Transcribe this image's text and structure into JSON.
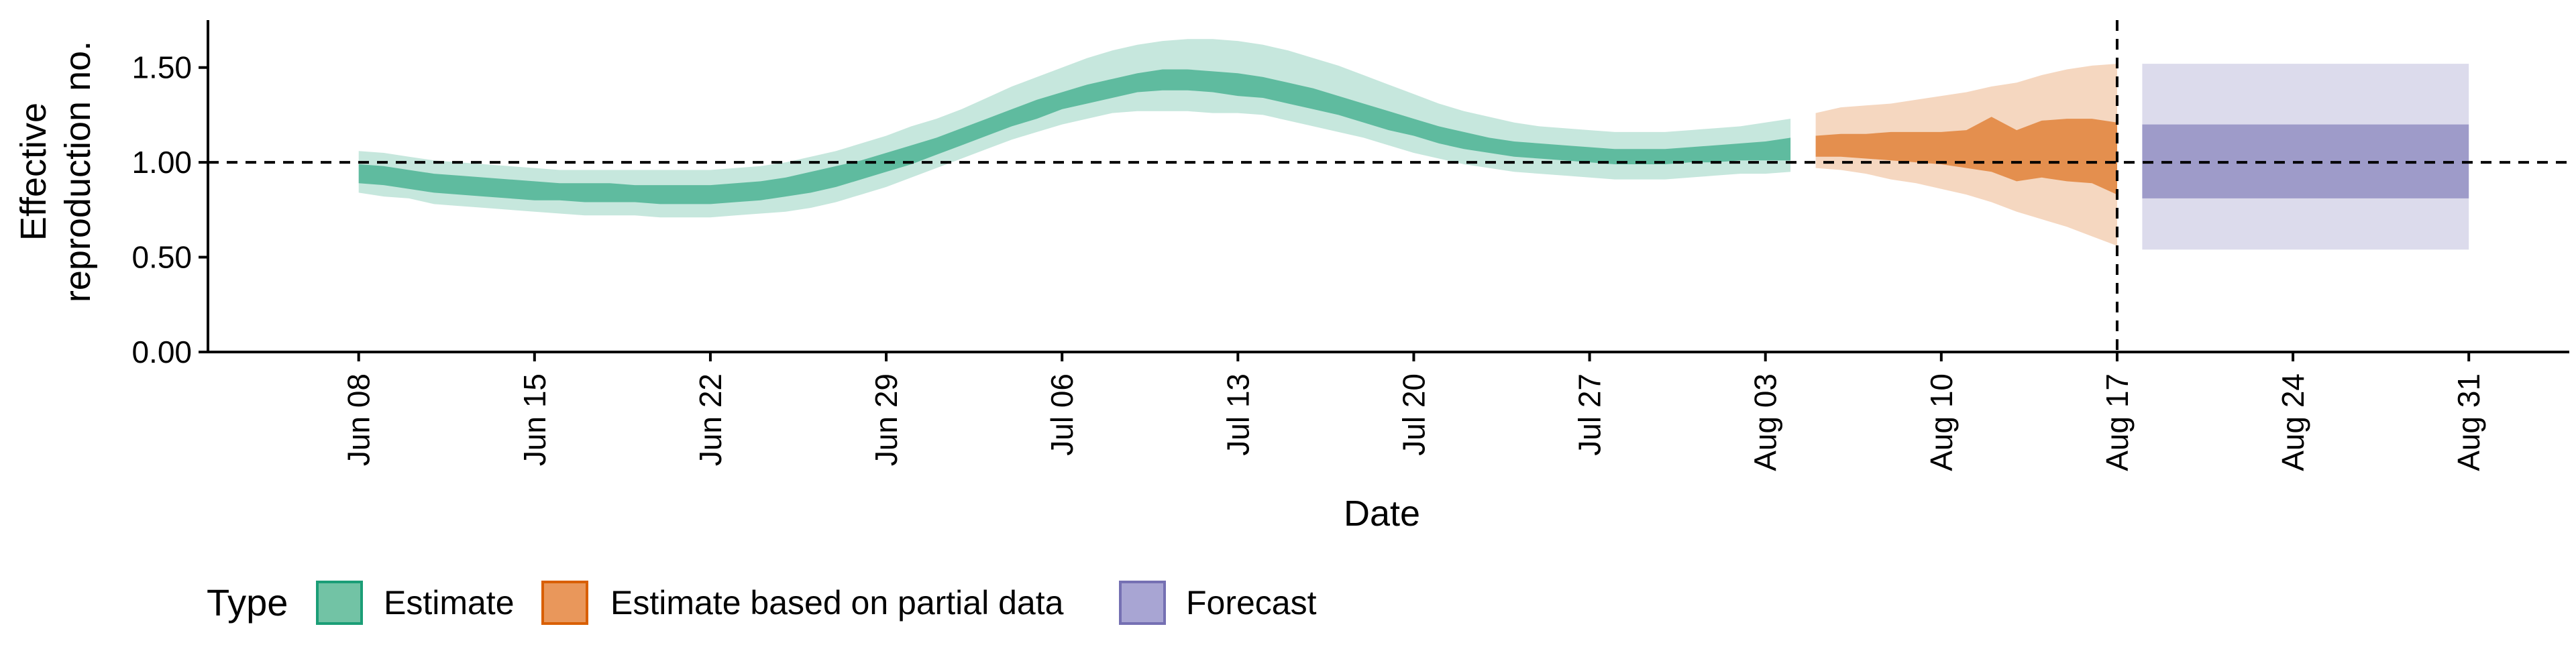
{
  "chart_data": {
    "type": "area",
    "xlabel": "Date",
    "ylabel": [
      "Effective",
      "reproduction no."
    ],
    "ylim": [
      0,
      1.75
    ],
    "yticks": [
      0,
      0.5,
      1.0,
      1.5
    ],
    "ytick_labels": [
      "0.00",
      "0.50",
      "1.00",
      "1.50"
    ],
    "xlim": [
      "2020-06-02",
      "2020-09-04"
    ],
    "xticks": [
      "2020-06-08",
      "2020-06-15",
      "2020-06-22",
      "2020-06-29",
      "2020-07-06",
      "2020-07-13",
      "2020-07-20",
      "2020-07-27",
      "2020-08-03",
      "2020-08-10",
      "2020-08-17",
      "2020-08-24",
      "2020-08-31"
    ],
    "xtick_labels": [
      "Jun 08",
      "Jun 15",
      "Jun 22",
      "Jun 29",
      "Jul 06",
      "Jul 13",
      "Jul 20",
      "Jul 27",
      "Aug 03",
      "Aug 10",
      "Aug 17",
      "Aug 24",
      "Aug 31"
    ],
    "reference_line_y": 1.0,
    "reference_line_x": "2020-08-17",
    "grid": false,
    "legend": {
      "title": "Type",
      "position": "bottom-left",
      "entries": [
        {
          "label": "Estimate",
          "fill": "#72C3A5",
          "stroke": "#1B9E77"
        },
        {
          "label": "Estimate based on partial data",
          "fill": "#E9975B",
          "stroke": "#D95F02"
        },
        {
          "label": "Forecast",
          "fill": "#A8A5D3",
          "stroke": "#7570B3"
        }
      ]
    },
    "series": [
      {
        "name": "Estimate",
        "color": "#1B9E77",
        "inner_opacity": 0.6,
        "outer_opacity": 0.25,
        "dates": [
          "2020-06-08",
          "2020-06-09",
          "2020-06-10",
          "2020-06-11",
          "2020-06-12",
          "2020-06-13",
          "2020-06-14",
          "2020-06-15",
          "2020-06-16",
          "2020-06-17",
          "2020-06-18",
          "2020-06-19",
          "2020-06-20",
          "2020-06-21",
          "2020-06-22",
          "2020-06-23",
          "2020-06-24",
          "2020-06-25",
          "2020-06-26",
          "2020-06-27",
          "2020-06-28",
          "2020-06-29",
          "2020-06-30",
          "2020-07-01",
          "2020-07-02",
          "2020-07-03",
          "2020-07-04",
          "2020-07-05",
          "2020-07-06",
          "2020-07-07",
          "2020-07-08",
          "2020-07-09",
          "2020-07-10",
          "2020-07-11",
          "2020-07-12",
          "2020-07-13",
          "2020-07-14",
          "2020-07-15",
          "2020-07-16",
          "2020-07-17",
          "2020-07-18",
          "2020-07-19",
          "2020-07-20",
          "2020-07-21",
          "2020-07-22",
          "2020-07-23",
          "2020-07-24",
          "2020-07-25",
          "2020-07-26",
          "2020-07-27",
          "2020-07-28",
          "2020-07-29",
          "2020-07-30",
          "2020-07-31",
          "2020-08-01",
          "2020-08-02",
          "2020-08-03",
          "2020-08-04"
        ],
        "lower90": [
          0.84,
          0.82,
          0.81,
          0.78,
          0.77,
          0.76,
          0.75,
          0.74,
          0.73,
          0.72,
          0.72,
          0.72,
          0.71,
          0.71,
          0.71,
          0.72,
          0.73,
          0.74,
          0.76,
          0.79,
          0.83,
          0.87,
          0.92,
          0.97,
          1.02,
          1.07,
          1.12,
          1.16,
          1.2,
          1.23,
          1.26,
          1.27,
          1.27,
          1.27,
          1.26,
          1.26,
          1.25,
          1.22,
          1.19,
          1.16,
          1.13,
          1.09,
          1.05,
          1.02,
          0.99,
          0.97,
          0.95,
          0.94,
          0.93,
          0.92,
          0.91,
          0.91,
          0.91,
          0.92,
          0.93,
          0.94,
          0.94,
          0.95
        ],
        "lower50": [
          0.89,
          0.88,
          0.86,
          0.84,
          0.83,
          0.82,
          0.81,
          0.8,
          0.8,
          0.79,
          0.79,
          0.79,
          0.78,
          0.78,
          0.78,
          0.79,
          0.8,
          0.82,
          0.84,
          0.87,
          0.91,
          0.95,
          0.99,
          1.04,
          1.09,
          1.14,
          1.19,
          1.23,
          1.28,
          1.31,
          1.34,
          1.37,
          1.38,
          1.38,
          1.37,
          1.35,
          1.34,
          1.31,
          1.28,
          1.25,
          1.21,
          1.17,
          1.14,
          1.1,
          1.07,
          1.05,
          1.03,
          1.02,
          1.01,
          1.0,
          0.99,
          0.99,
          0.99,
          1.0,
          1.0,
          1.01,
          1.01,
          1.01
        ],
        "upper50": [
          0.99,
          0.98,
          0.96,
          0.94,
          0.93,
          0.92,
          0.91,
          0.9,
          0.89,
          0.89,
          0.89,
          0.88,
          0.88,
          0.88,
          0.88,
          0.89,
          0.9,
          0.92,
          0.95,
          0.98,
          1.01,
          1.05,
          1.09,
          1.13,
          1.18,
          1.23,
          1.28,
          1.33,
          1.37,
          1.41,
          1.44,
          1.47,
          1.49,
          1.49,
          1.48,
          1.47,
          1.45,
          1.42,
          1.39,
          1.35,
          1.31,
          1.27,
          1.23,
          1.19,
          1.16,
          1.13,
          1.11,
          1.1,
          1.09,
          1.08,
          1.07,
          1.07,
          1.07,
          1.08,
          1.09,
          1.1,
          1.11,
          1.13
        ],
        "upper90": [
          1.06,
          1.05,
          1.03,
          1.01,
          1.0,
          0.99,
          0.98,
          0.97,
          0.96,
          0.96,
          0.96,
          0.96,
          0.96,
          0.96,
          0.96,
          0.97,
          0.98,
          1.0,
          1.03,
          1.06,
          1.1,
          1.14,
          1.19,
          1.23,
          1.28,
          1.34,
          1.4,
          1.45,
          1.5,
          1.55,
          1.59,
          1.62,
          1.64,
          1.65,
          1.65,
          1.64,
          1.62,
          1.59,
          1.55,
          1.51,
          1.46,
          1.41,
          1.36,
          1.31,
          1.27,
          1.24,
          1.21,
          1.19,
          1.18,
          1.17,
          1.16,
          1.16,
          1.16,
          1.17,
          1.18,
          1.19,
          1.21,
          1.23
        ]
      },
      {
        "name": "Estimate based on partial data",
        "color": "#D95F02",
        "inner_opacity": 0.6,
        "outer_opacity": 0.25,
        "dates": [
          "2020-08-05",
          "2020-08-06",
          "2020-08-07",
          "2020-08-08",
          "2020-08-09",
          "2020-08-10",
          "2020-08-11",
          "2020-08-12",
          "2020-08-13",
          "2020-08-14",
          "2020-08-15",
          "2020-08-16",
          "2020-08-17"
        ],
        "lower90": [
          0.97,
          0.96,
          0.94,
          0.91,
          0.89,
          0.86,
          0.83,
          0.79,
          0.74,
          0.7,
          0.66,
          0.61,
          0.56
        ],
        "lower50": [
          1.03,
          1.03,
          1.02,
          1.01,
          1.0,
          0.99,
          0.97,
          0.95,
          0.9,
          0.92,
          0.9,
          0.89,
          0.83
        ],
        "upper50": [
          1.14,
          1.15,
          1.15,
          1.16,
          1.16,
          1.16,
          1.17,
          1.24,
          1.17,
          1.22,
          1.23,
          1.23,
          1.21
        ],
        "upper90": [
          1.26,
          1.29,
          1.3,
          1.31,
          1.33,
          1.35,
          1.37,
          1.4,
          1.42,
          1.46,
          1.49,
          1.51,
          1.52
        ]
      },
      {
        "name": "Forecast",
        "color": "#7570B3",
        "inner_opacity": 0.6,
        "outer_opacity": 0.25,
        "dates": [
          "2020-08-18",
          "2020-08-31"
        ],
        "lower90": [
          0.54,
          0.54
        ],
        "lower50": [
          0.81,
          0.81
        ],
        "upper50": [
          1.2,
          1.2
        ],
        "upper90": [
          1.52,
          1.52
        ]
      }
    ]
  }
}
